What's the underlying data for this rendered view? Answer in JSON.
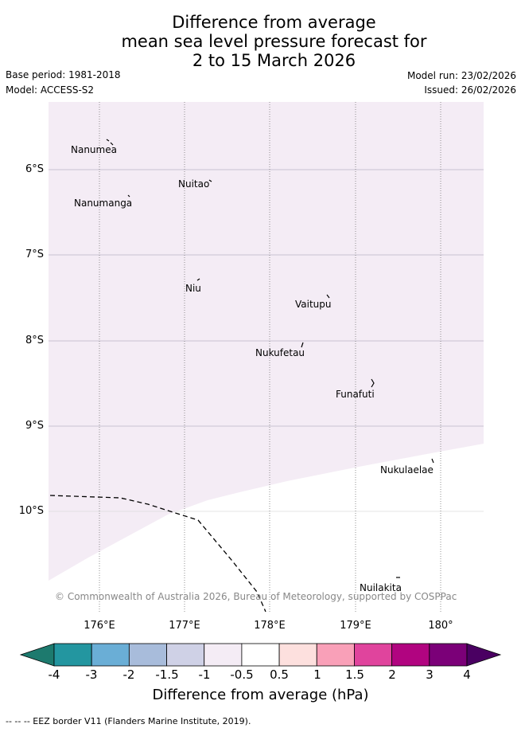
{
  "header": {
    "title_lines": [
      "Difference from average",
      "mean sea level pressure forecast for",
      "2 to 15 March 2026"
    ],
    "base_period": "Base period: 1981-2018",
    "model": "Model: ACCESS-S2",
    "model_run": "Model run: 23/02/2026",
    "issued": "Issued: 26/02/2026"
  },
  "map": {
    "lat_labels": [
      "6°S",
      "7°S",
      "8°S",
      "9°S",
      "10°S"
    ],
    "lon_labels": [
      "176°E",
      "177°E",
      "178°E",
      "179°E",
      "180°"
    ],
    "places": [
      "Nanumea",
      "Nuitao",
      "Nanumanga",
      "Niu",
      "Vaitupu",
      "Nukufetau",
      "Funafuti",
      "Nukulaelae",
      "Nuilakita"
    ],
    "copyright": "© Commonwealth of Australia 2026, Bureau of Meteorology, supported by COSPPac",
    "shaded_category": "-1 to -0.5",
    "shade_color": "#f4ecf5"
  },
  "colorbar": {
    "ticks": [
      "-4",
      "-3",
      "-2",
      "-1.5",
      "-1",
      "-0.5",
      "0.5",
      "1",
      "1.5",
      "2",
      "3",
      "4"
    ],
    "colors": [
      "#1d7a6e",
      "#2396a0",
      "#6aaed6",
      "#a8bcdb",
      "#cfd1e6",
      "#f4ecf5",
      "#ffffff",
      "#fde0de",
      "#f9a0b8",
      "#e0449d",
      "#b10480",
      "#7b0078",
      "#4a0062"
    ],
    "label": "Difference from average (hPa)"
  },
  "footnote": "--  --  -- EEZ border V11 (Flanders Marine Institute, 2019)."
}
